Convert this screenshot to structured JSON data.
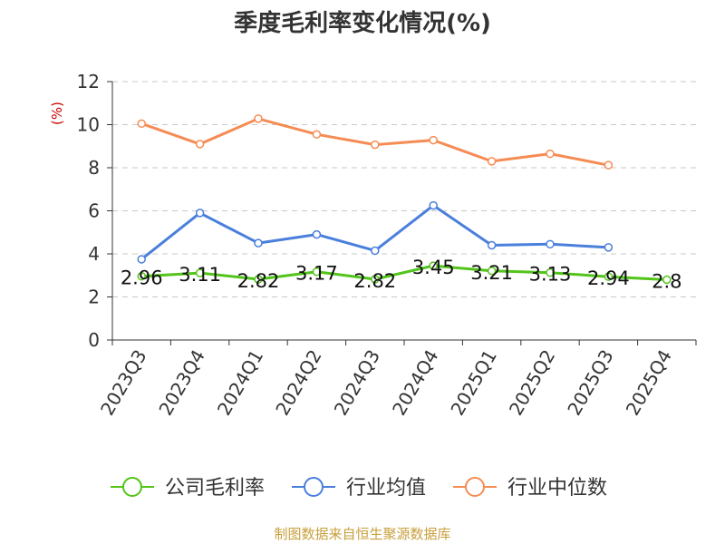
{
  "chart_data": {
    "type": "line",
    "title": "季度毛利率变化情况(%)",
    "ylabel": "(%)",
    "ylim": [
      0,
      12
    ],
    "yticks": [
      0,
      2,
      4,
      6,
      8,
      10,
      12
    ],
    "grid": true,
    "legend_position": "bottom",
    "categories": [
      "2023Q3",
      "2023Q4",
      "2024Q1",
      "2024Q2",
      "2024Q3",
      "2024Q4",
      "2025Q1",
      "2025Q2",
      "2025Q3",
      "2025Q4"
    ],
    "series": [
      {
        "name": "公司毛利率",
        "color": "#52c41a",
        "values": [
          2.96,
          3.11,
          2.82,
          3.17,
          2.82,
          3.45,
          3.21,
          3.13,
          2.94,
          2.8
        ],
        "show_labels": true
      },
      {
        "name": "行业均值",
        "color": "#4a7fdc",
        "values": [
          3.75,
          5.9,
          4.5,
          4.9,
          4.15,
          6.25,
          4.4,
          4.45,
          4.3,
          null
        ],
        "show_labels": false
      },
      {
        "name": "行业中位数",
        "color": "#f58c54",
        "values": [
          10.05,
          9.1,
          10.28,
          9.55,
          9.07,
          9.28,
          8.3,
          8.65,
          8.12,
          null
        ],
        "show_labels": false
      }
    ]
  },
  "source": "制图数据来自恒生聚源数据库"
}
